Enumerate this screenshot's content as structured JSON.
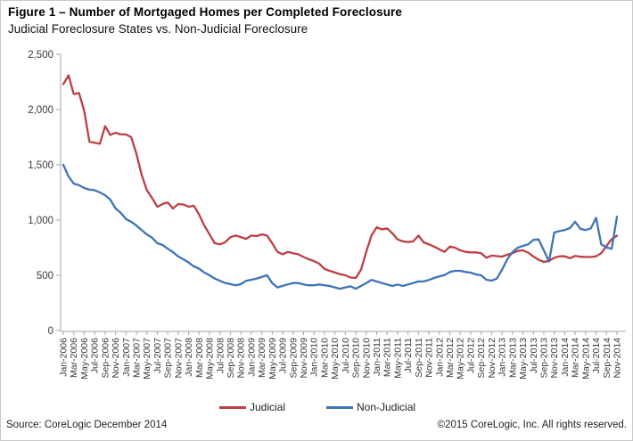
{
  "header": {
    "title": "Figure 1 – Number of Mortgaged Homes per Completed Foreclosure",
    "subtitle": "Judicial Foreclosure States vs. Non-Judicial Foreclosure"
  },
  "chart_data": {
    "type": "line",
    "title": "Figure 1 – Number of Mortgaged Homes per Completed Foreclosure",
    "subtitle": "Judicial Foreclosure States vs. Non-Judicial Foreclosure",
    "x_interval": "monthly",
    "x_range": [
      "Jan-2006",
      "Nov-2014"
    ],
    "x_tick_labels": [
      "Jan-2006",
      "Mar-2006",
      "May-2006",
      "Jul-2006",
      "Sep-2006",
      "Nov-2006",
      "Jan-2007",
      "Mar-2007",
      "May-2007",
      "Jul-2007",
      "Sep-2007",
      "Nov-2007",
      "Jan-2008",
      "Mar-2008",
      "May-2008",
      "Jul-2008",
      "Sep-2008",
      "Nov-2008",
      "Jan-2009",
      "Mar-2009",
      "May-2009",
      "Jul-2009",
      "Sep-2009",
      "Nov-2009",
      "Jan-2010",
      "Mar-2010",
      "May-2010",
      "Jul-2010",
      "Sep-2010",
      "Nov-2010",
      "Jan-2011",
      "Mar-2011",
      "May-2011",
      "Jul-2011",
      "Sep-2011",
      "Nov-2011",
      "Jan-2012",
      "Mar-2012",
      "May-2012",
      "Jul-2012",
      "Sep-2012",
      "Nov-2012",
      "Jan-2013",
      "Mar-2013",
      "May-2013",
      "Jul-2013",
      "Sep-2013",
      "Nov-2013",
      "Jan-2014",
      "Mar-2014",
      "May-2014",
      "Jul-2014",
      "Sep-2014",
      "Nov-2014"
    ],
    "ylim": [
      0,
      2500
    ],
    "ytick_step": 500,
    "ytick_labels": [
      "0",
      "500",
      "1,000",
      "1,500",
      "2,000",
      "2,500"
    ],
    "grid": false,
    "legend_position": "bottom",
    "axis_color": "#a6a6a6",
    "label_color": "#3a3a3a",
    "series": [
      {
        "name": "Judicial",
        "color": "#be3e42",
        "values": [
          2230,
          2310,
          2140,
          2150,
          1990,
          1710,
          1700,
          1690,
          1850,
          1770,
          1790,
          1775,
          1775,
          1750,
          1600,
          1410,
          1270,
          1200,
          1120,
          1145,
          1160,
          1105,
          1145,
          1140,
          1120,
          1130,
          1050,
          950,
          870,
          790,
          780,
          800,
          845,
          860,
          845,
          830,
          860,
          855,
          870,
          860,
          790,
          712,
          690,
          712,
          700,
          690,
          665,
          645,
          628,
          605,
          558,
          540,
          525,
          510,
          500,
          480,
          476,
          550,
          712,
          860,
          935,
          915,
          925,
          880,
          825,
          807,
          800,
          807,
          860,
          798,
          780,
          760,
          735,
          712,
          760,
          750,
          726,
          712,
          707,
          707,
          699,
          659,
          678,
          673,
          669,
          686,
          700,
          720,
          726,
          706,
          670,
          640,
          621,
          631,
          659,
          672,
          672,
          655,
          675,
          668,
          666,
          665,
          672,
          700,
          765,
          828,
          858
        ]
      },
      {
        "name": "Non-Judicial",
        "color": "#3e73b8",
        "values": [
          1500,
          1395,
          1330,
          1315,
          1290,
          1275,
          1270,
          1250,
          1225,
          1185,
          1105,
          1065,
          1010,
          985,
          950,
          910,
          870,
          840,
          790,
          775,
          740,
          710,
          670,
          645,
          615,
          580,
          560,
          525,
          500,
          470,
          450,
          430,
          420,
          410,
          420,
          450,
          460,
          470,
          485,
          500,
          430,
          390,
          405,
          418,
          430,
          430,
          418,
          410,
          410,
          418,
          410,
          403,
          390,
          378,
          390,
          400,
          378,
          403,
          430,
          458,
          444,
          430,
          417,
          403,
          417,
          403,
          417,
          430,
          444,
          444,
          458,
          476,
          490,
          502,
          530,
          540,
          540,
          530,
          524,
          508,
          500,
          460,
          452,
          470,
          550,
          645,
          710,
          750,
          766,
          780,
          820,
          825,
          726,
          625,
          887,
          901,
          910,
          928,
          985,
          920,
          910,
          925,
          1020,
          780,
          752,
          740,
          1030
        ]
      }
    ]
  },
  "footer": {
    "source": "Source: CoreLogic December 2014",
    "copyright": "©2015 CoreLogic, Inc. All rights reserved."
  }
}
